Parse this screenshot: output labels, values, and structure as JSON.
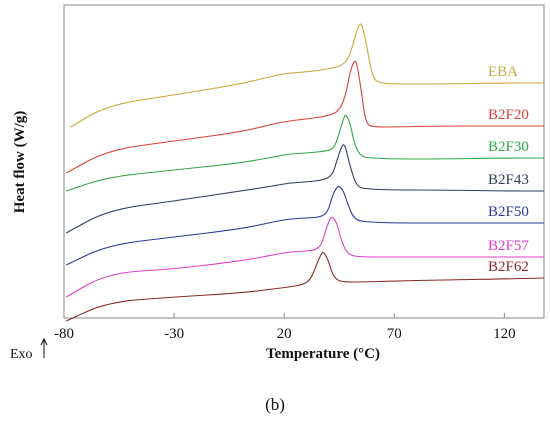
{
  "chart_data": {
    "type": "line",
    "xlabel": "Temperature (°C)",
    "ylabel": "Heat flow (W/g)",
    "xlim": [
      -80,
      138
    ],
    "x_ticks": [
      -80,
      -30,
      20,
      70,
      120
    ],
    "y_ticks_shown": false,
    "grid": false,
    "exo_label": "Exo",
    "panel_label": "(b)",
    "series": [
      {
        "name": "EBA",
        "color": "#c8aa3c",
        "offset": 0,
        "points": [
          [
            -77,
            122
          ],
          [
            -60,
            100
          ],
          [
            -30,
            90
          ],
          [
            0,
            79
          ],
          [
            15,
            71
          ],
          [
            22,
            68
          ],
          [
            30,
            67
          ],
          [
            40,
            64
          ],
          [
            47,
            60
          ],
          [
            50,
            50
          ],
          [
            53,
            25
          ],
          [
            55,
            16
          ],
          [
            57,
            35
          ],
          [
            60,
            72
          ],
          [
            63,
            78
          ],
          [
            70,
            79
          ],
          [
            90,
            79
          ],
          [
            120,
            78
          ],
          [
            138,
            78
          ]
        ]
      },
      {
        "name": "B2F20",
        "color": "#d9433a",
        "offset": 0,
        "points": [
          [
            -79,
            168
          ],
          [
            -60,
            145
          ],
          [
            -30,
            136
          ],
          [
            0,
            127
          ],
          [
            15,
            119
          ],
          [
            22,
            116
          ],
          [
            30,
            114
          ],
          [
            40,
            111
          ],
          [
            45,
            106
          ],
          [
            48,
            90
          ],
          [
            50,
            66
          ],
          [
            52,
            55
          ],
          [
            53,
            58
          ],
          [
            55,
            85
          ],
          [
            57,
            118
          ],
          [
            60,
            122
          ],
          [
            70,
            122
          ],
          [
            90,
            121
          ],
          [
            120,
            121
          ],
          [
            138,
            121
          ]
        ]
      },
      {
        "name": "B2F30",
        "color": "#2da84a",
        "offset": 0,
        "points": [
          [
            -79,
            186
          ],
          [
            -60,
            172
          ],
          [
            -30,
            165
          ],
          [
            0,
            158
          ],
          [
            15,
            152
          ],
          [
            22,
            149
          ],
          [
            30,
            148
          ],
          [
            40,
            146
          ],
          [
            43,
            142
          ],
          [
            45,
            128
          ],
          [
            47,
            113
          ],
          [
            48,
            109
          ],
          [
            50,
            118
          ],
          [
            52,
            140
          ],
          [
            55,
            152
          ],
          [
            60,
            153
          ],
          [
            70,
            154
          ],
          [
            90,
            154
          ],
          [
            120,
            153
          ],
          [
            138,
            153
          ]
        ]
      },
      {
        "name": "B2F43",
        "color": "#2f3e5c",
        "offset": 0,
        "points": [
          [
            -79,
            228
          ],
          [
            -60,
            205
          ],
          [
            -30,
            196
          ],
          [
            0,
            186
          ],
          [
            15,
            181
          ],
          [
            22,
            178
          ],
          [
            30,
            177
          ],
          [
            38,
            175
          ],
          [
            42,
            170
          ],
          [
            44,
            155
          ],
          [
            46,
            142
          ],
          [
            47,
            139
          ],
          [
            48,
            143
          ],
          [
            50,
            162
          ],
          [
            53,
            182
          ],
          [
            58,
            184
          ],
          [
            70,
            185
          ],
          [
            90,
            185
          ],
          [
            120,
            186
          ],
          [
            138,
            186
          ]
        ]
      },
      {
        "name": "B2F50",
        "color": "#2b3a96",
        "offset": 0,
        "points": [
          [
            -79,
            260
          ],
          [
            -60,
            240
          ],
          [
            -30,
            232
          ],
          [
            0,
            224
          ],
          [
            15,
            217
          ],
          [
            22,
            214
          ],
          [
            30,
            213
          ],
          [
            37,
            212
          ],
          [
            40,
            206
          ],
          [
            42,
            190
          ],
          [
            44,
            182
          ],
          [
            45,
            181
          ],
          [
            47,
            186
          ],
          [
            49,
            200
          ],
          [
            52,
            215
          ],
          [
            58,
            217
          ],
          [
            70,
            218
          ],
          [
            90,
            218
          ],
          [
            120,
            218
          ],
          [
            138,
            218
          ]
        ]
      },
      {
        "name": "B2F57",
        "color": "#e040c8",
        "offset": 0,
        "points": [
          [
            -79,
            292
          ],
          [
            -60,
            268
          ],
          [
            -30,
            264
          ],
          [
            0,
            256
          ],
          [
            15,
            250
          ],
          [
            22,
            247
          ],
          [
            30,
            246
          ],
          [
            34,
            245
          ],
          [
            37,
            240
          ],
          [
            39,
            224
          ],
          [
            41,
            213
          ],
          [
            42,
            212
          ],
          [
            44,
            218
          ],
          [
            46,
            236
          ],
          [
            49,
            250
          ],
          [
            55,
            252
          ],
          [
            70,
            252
          ],
          [
            90,
            252
          ],
          [
            120,
            252
          ],
          [
            138,
            252
          ]
        ]
      },
      {
        "name": "B2F62",
        "color": "#8a2a2a",
        "offset": 0,
        "points": [
          [
            -79,
            316
          ],
          [
            -60,
            297
          ],
          [
            -30,
            292
          ],
          [
            0,
            288
          ],
          [
            15,
            284
          ],
          [
            22,
            282
          ],
          [
            28,
            280
          ],
          [
            32,
            275
          ],
          [
            35,
            258
          ],
          [
            37,
            248
          ],
          [
            38,
            247
          ],
          [
            40,
            255
          ],
          [
            42,
            270
          ],
          [
            45,
            277
          ],
          [
            55,
            277
          ],
          [
            70,
            276
          ],
          [
            90,
            275
          ],
          [
            120,
            274
          ],
          [
            138,
            273
          ]
        ]
      }
    ]
  }
}
